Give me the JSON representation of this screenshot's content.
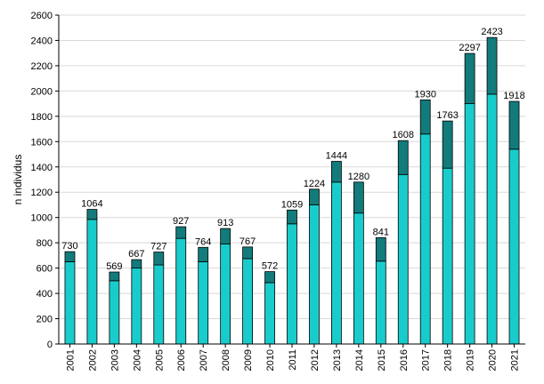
{
  "chart_data": {
    "type": "bar",
    "stacked": true,
    "ylabel": "n individus",
    "xlabel": "",
    "ylim": [
      0,
      2600
    ],
    "yticks": [
      0,
      200,
      400,
      600,
      800,
      1000,
      1200,
      1400,
      1600,
      1800,
      2000,
      2200,
      2400,
      2600
    ],
    "grid": true,
    "categories": [
      "2001",
      "2002",
      "2003",
      "2004",
      "2005",
      "2006",
      "2007",
      "2008",
      "2009",
      "2010",
      "2011",
      "2012",
      "2013",
      "2014",
      "2015",
      "2016",
      "2017",
      "2018",
      "2019",
      "2020",
      "2021"
    ],
    "series": [
      {
        "color": "#19cccc",
        "values": [
          650,
          985,
          500,
          600,
          625,
          835,
          650,
          790,
          675,
          485,
          950,
          1100,
          1280,
          1035,
          655,
          1340,
          1660,
          1390,
          1900,
          1975,
          1540
        ]
      },
      {
        "color": "#137b7b",
        "values": [
          80,
          79,
          69,
          67,
          102,
          92,
          114,
          123,
          92,
          87,
          109,
          124,
          164,
          245,
          186,
          268,
          270,
          373,
          397,
          448,
          378
        ]
      }
    ],
    "totals": [
      "730",
      "1064",
      "569",
      "667",
      "727",
      "927",
      "764",
      "913",
      "767",
      "572",
      "1059",
      "1224",
      "1444",
      "1280",
      "841",
      "1608",
      "1930",
      "1763",
      "2297",
      "2423",
      "1918"
    ]
  }
}
